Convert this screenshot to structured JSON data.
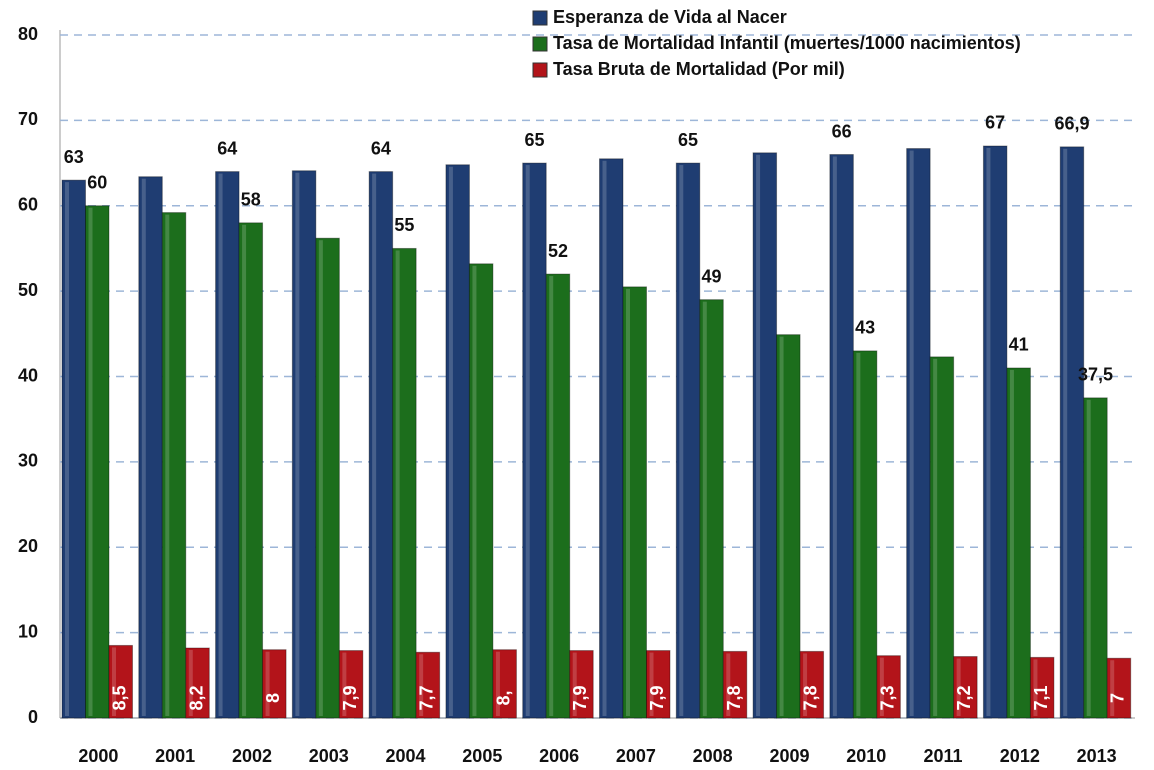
{
  "chart_data": {
    "type": "bar",
    "categories": [
      "2000",
      "2001",
      "2002",
      "2003",
      "2004",
      "2005",
      "2006",
      "2007",
      "2008",
      "2009",
      "2010",
      "2011",
      "2012",
      "2013"
    ],
    "series": [
      {
        "name": "Esperanza de Vida al Nacer",
        "color": "#1f3d72",
        "values": [
          63,
          63.4,
          64,
          64.1,
          64,
          64.8,
          65,
          65.5,
          65,
          66.2,
          66,
          66.7,
          67,
          66.9
        ],
        "value_labels": [
          "63",
          null,
          "64",
          null,
          "64",
          null,
          "65",
          null,
          "65",
          null,
          "66",
          null,
          "67",
          "66,9"
        ]
      },
      {
        "name": "Tasa de Mortalidad Infantil (muertes/1000 nacimientos)",
        "color": "#1c6e1c",
        "values": [
          60,
          59.2,
          58,
          56.2,
          55,
          53.2,
          52,
          50.5,
          49,
          44.9,
          43,
          42.3,
          41,
          37.5
        ],
        "value_labels": [
          "60",
          null,
          "58",
          null,
          "55",
          null,
          "52",
          null,
          "49",
          null,
          "43",
          null,
          "41",
          "37,5"
        ]
      },
      {
        "name": "Tasa Bruta de Mortalidad (Por mil)",
        "color": "#b3141a",
        "values": [
          8.5,
          8.2,
          8,
          7.9,
          7.7,
          8,
          7.9,
          7.9,
          7.8,
          7.8,
          7.3,
          7.2,
          7.1,
          7
        ],
        "value_labels": [
          "8,5",
          "8,2",
          "8",
          "7,9",
          "7,7",
          "8,",
          "7,9",
          "7,9",
          "7,8",
          "7,8",
          "7,3",
          "7,2",
          "7,1",
          "7"
        ]
      }
    ],
    "ylim": [
      0,
      80
    ],
    "yticks": [
      0,
      10,
      20,
      30,
      40,
      50,
      60,
      70,
      80
    ],
    "grid": true,
    "legend": "top-right"
  }
}
